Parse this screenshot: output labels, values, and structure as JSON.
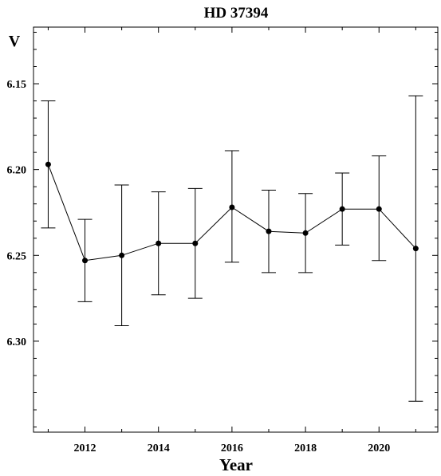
{
  "chart_data": {
    "type": "scatter",
    "title": "HD 37394",
    "xlabel": "Year",
    "ylabel": "V",
    "xlim": [
      2010.6,
      2021.6
    ],
    "ylim": [
      6.117,
      6.353
    ],
    "y_inverted": true,
    "xticks": [
      2012,
      2014,
      2016,
      2018,
      2020
    ],
    "yticks": [
      6.15,
      6.2,
      6.25,
      6.3
    ],
    "ytick_labels": [
      "6.15",
      "6.20",
      "6.25",
      "6.30"
    ],
    "grid": false,
    "series": [
      {
        "x": [
          2011,
          2012,
          2013,
          2014,
          2015,
          2016,
          2017,
          2018,
          2019,
          2020,
          2021
        ],
        "y": [
          6.197,
          6.253,
          6.25,
          6.243,
          6.243,
          6.222,
          6.236,
          6.237,
          6.223,
          6.223,
          6.246
        ],
        "err_low": [
          6.16,
          6.229,
          6.209,
          6.213,
          6.211,
          6.189,
          6.212,
          6.214,
          6.202,
          6.192,
          6.157
        ],
        "err_high": [
          6.234,
          6.277,
          6.291,
          6.273,
          6.275,
          6.254,
          6.26,
          6.26,
          6.244,
          6.253,
          6.335
        ]
      }
    ],
    "colors": {
      "line": "#000000",
      "marker": "#000000"
    }
  }
}
